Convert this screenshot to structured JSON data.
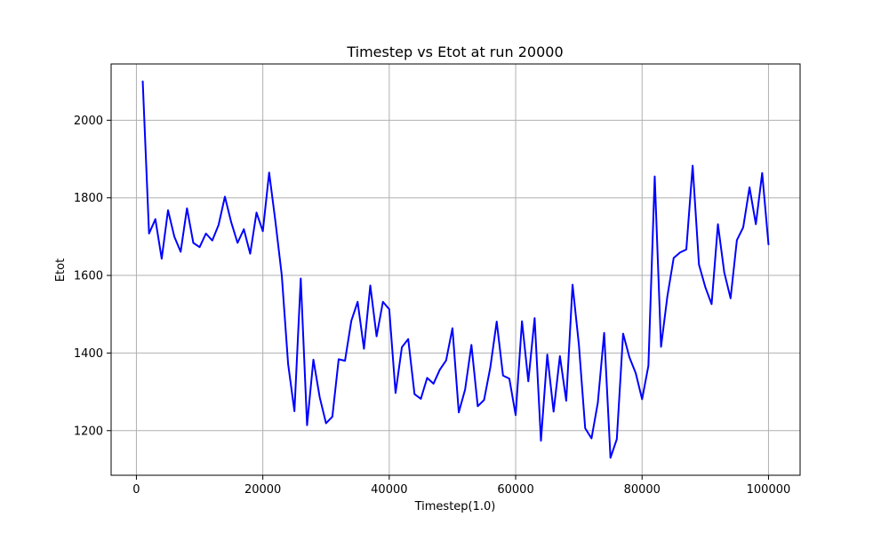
{
  "chart_data": {
    "type": "line",
    "title": "Timestep vs Etot at run 20000",
    "xlabel": "Timestep(1.0)",
    "ylabel": "Etot",
    "xlim": [
      -4000,
      105000
    ],
    "ylim": [
      1085,
      2145
    ],
    "xticks": [
      0,
      20000,
      40000,
      60000,
      80000,
      100000
    ],
    "yticks": [
      1200,
      1400,
      1600,
      1800,
      2000
    ],
    "grid": true,
    "series": [
      {
        "color": "#0000ff",
        "x": [
          1000,
          2000,
          3000,
          4000,
          5000,
          6000,
          7000,
          8000,
          9000,
          10000,
          11000,
          12000,
          13000,
          14000,
          15000,
          16000,
          17000,
          18000,
          19000,
          20000,
          21000,
          22000,
          23000,
          24000,
          25000,
          26000,
          27000,
          28000,
          29000,
          30000,
          31000,
          32000,
          33000,
          34000,
          35000,
          36000,
          37000,
          38000,
          39000,
          40000,
          41000,
          42000,
          43000,
          44000,
          45000,
          46000,
          47000,
          48000,
          49000,
          50000,
          51000,
          52000,
          53000,
          54000,
          55000,
          56000,
          57000,
          58000,
          59000,
          60000,
          61000,
          62000,
          63000,
          64000,
          65000,
          66000,
          67000,
          68000,
          69000,
          70000,
          71000,
          72000,
          73000,
          74000,
          75000,
          76000,
          77000,
          78000,
          79000,
          80000,
          81000,
          82000,
          83000,
          84000,
          85000,
          86000,
          87000,
          88000,
          89000,
          90000,
          91000,
          92000,
          93000,
          94000,
          95000,
          96000,
          97000,
          98000,
          99000,
          100000
        ],
        "y": [
          2100,
          1708,
          1745,
          1643,
          1768,
          1700,
          1661,
          1773,
          1684,
          1673,
          1708,
          1690,
          1730,
          1803,
          1737,
          1684,
          1719,
          1656,
          1762,
          1714,
          1865,
          1738,
          1600,
          1372,
          1250,
          1592,
          1214,
          1383,
          1286,
          1219,
          1236,
          1384,
          1380,
          1483,
          1532,
          1411,
          1574,
          1443,
          1532,
          1513,
          1297,
          1415,
          1436,
          1294,
          1282,
          1336,
          1321,
          1357,
          1381,
          1464,
          1247,
          1306,
          1421,
          1263,
          1279,
          1364,
          1481,
          1342,
          1334,
          1240,
          1482,
          1327,
          1490,
          1174,
          1396,
          1249,
          1392,
          1277,
          1576,
          1422,
          1206,
          1180,
          1272,
          1452,
          1130,
          1178,
          1450,
          1389,
          1348,
          1281,
          1367,
          1855,
          1416,
          1546,
          1645,
          1659,
          1667,
          1883,
          1628,
          1570,
          1526,
          1732,
          1608,
          1541,
          1691,
          1724,
          1827,
          1732,
          1864,
          1680
        ]
      }
    ]
  }
}
